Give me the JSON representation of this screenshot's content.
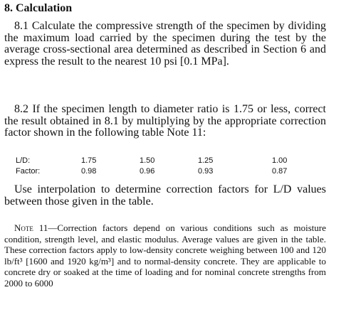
{
  "section": {
    "heading": "8. Calculation",
    "para1": {
      "number": "8.1",
      "text": "Calculate the compressive strength of the specimen by dividing the maximum load carried by the specimen during the test by the average cross-sectional area determined as described in Section 6 and express the result to the nearest 10 psi [0.1 MPa]."
    },
    "para2": {
      "number": "8.2",
      "text": "If the specimen length to diameter ratio is 1.75 or less, correct the result obtained in 8.1 by multiplying by the appropriate correction factor shown in the following table Note 11:"
    },
    "table": {
      "rows": [
        [
          "L/D:",
          "1.75",
          "1.50",
          "1.25",
          "1.00"
        ],
        [
          "Factor:",
          "0.98",
          "0.96",
          "0.93",
          "0.87"
        ]
      ]
    },
    "para3": "Use interpolation to determine correction factors for L/D values between those given in the table.",
    "note": {
      "label": "Note 11",
      "text": "—Correction factors depend on various conditions such as moisture condition, strength level, and elastic modulus. Average values are given in the table. These correction factors apply to low-density concrete weighing between 100 and 120 lb/ft³ [1600 and 1920 kg/m³] and to normal-density concrete. They are applicable to concrete dry or soaked at the time of loading and for nominal concrete strengths from 2000 to 6000"
    }
  }
}
